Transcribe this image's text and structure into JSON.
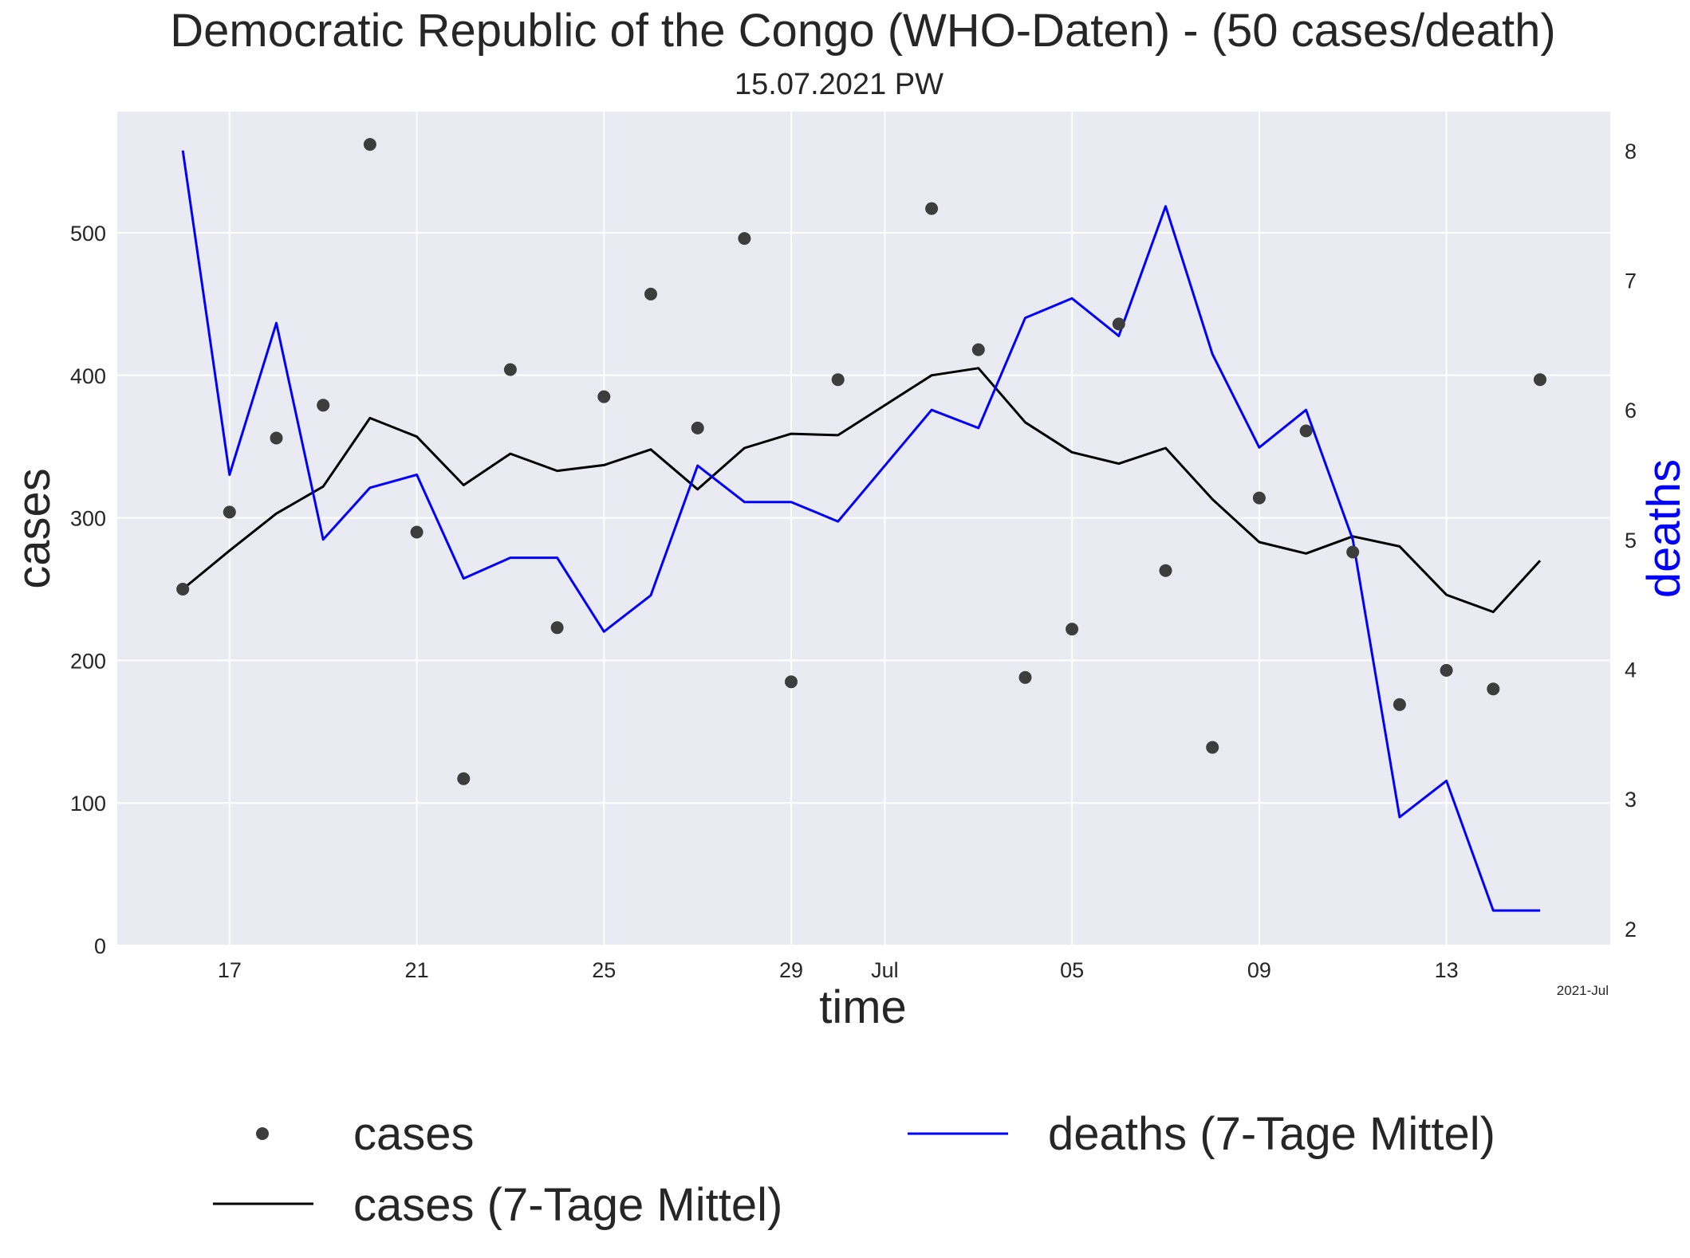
{
  "chart_data": {
    "type": "line",
    "title": "Democratic Republic of the Congo (WHO-Daten) - (50 cases/death)",
    "subtitle": "15.07.2021 PW",
    "xlabel": "time",
    "ylabel_left": "cases",
    "ylabel_right": "deaths",
    "x_corner_label": "2021-Jul",
    "x_dates": [
      "2021-06-16",
      "2021-06-17",
      "2021-06-18",
      "2021-06-19",
      "2021-06-20",
      "2021-06-21",
      "2021-06-22",
      "2021-06-23",
      "2021-06-24",
      "2021-06-25",
      "2021-06-26",
      "2021-06-27",
      "2021-06-28",
      "2021-06-29",
      "2021-06-30",
      "2021-07-01",
      "2021-07-02",
      "2021-07-03",
      "2021-07-04",
      "2021-07-05",
      "2021-07-06",
      "2021-07-07",
      "2021-07-08",
      "2021-07-09",
      "2021-07-10",
      "2021-07-11",
      "2021-07-12",
      "2021-07-13",
      "2021-07-14",
      "2021-07-15"
    ],
    "x_ticks": [
      {
        "date": "2021-06-17",
        "label": "17"
      },
      {
        "date": "2021-06-21",
        "label": "21"
      },
      {
        "date": "2021-06-25",
        "label": "25"
      },
      {
        "date": "2021-06-29",
        "label": "29"
      },
      {
        "date": "2021-07-01",
        "label": "Jul"
      },
      {
        "date": "2021-07-05",
        "label": "05"
      },
      {
        "date": "2021-07-09",
        "label": "09"
      },
      {
        "date": "2021-07-13",
        "label": "13"
      }
    ],
    "x_range": [
      "2021-06-14.6",
      "2021-07-16.5"
    ],
    "y_left_range": [
      0,
      585
    ],
    "y_left_ticks": [
      0,
      100,
      200,
      300,
      400,
      500
    ],
    "y_right_range": [
      1.87,
      8.3
    ],
    "y_right_ticks": [
      2,
      3,
      4,
      5,
      6,
      7,
      8
    ],
    "grid": true,
    "legend_position": "bottom",
    "series": [
      {
        "name": "cases",
        "kind": "scatter",
        "axis": "left",
        "color": "#3d3d3d",
        "values": [
          250,
          304,
          356,
          379,
          562,
          290,
          117,
          404,
          223,
          385,
          457,
          363,
          496,
          185,
          397,
          null,
          517,
          418,
          188,
          222,
          436,
          263,
          139,
          314,
          361,
          276,
          169,
          193,
          180,
          397
        ]
      },
      {
        "name": "cases (7-Tage Mittel)",
        "kind": "line",
        "axis": "left",
        "color": "#000000",
        "values": [
          250,
          277,
          303,
          322,
          370,
          357,
          323,
          345,
          333,
          337,
          348,
          320,
          349,
          359,
          358,
          null,
          400,
          405,
          367,
          346,
          338,
          349,
          313,
          283,
          275,
          287,
          280,
          246,
          234,
          270
        ]
      },
      {
        "name": "deaths (7-Tage Mittel)",
        "kind": "line",
        "axis": "right",
        "color": "#0000ff",
        "values": [
          8.0,
          5.5,
          6.67,
          5.0,
          5.4,
          5.5,
          4.7,
          4.86,
          4.86,
          4.29,
          4.57,
          5.57,
          5.29,
          5.29,
          5.14,
          null,
          6.0,
          5.86,
          6.71,
          6.86,
          6.57,
          7.57,
          6.43,
          5.71,
          6.0,
          5.0,
          2.86,
          3.14,
          2.14,
          2.14
        ]
      }
    ]
  },
  "colors": {
    "plot_background": "#eaeaf2",
    "grid": "#ffffff",
    "deaths_label": "#0000ff"
  }
}
